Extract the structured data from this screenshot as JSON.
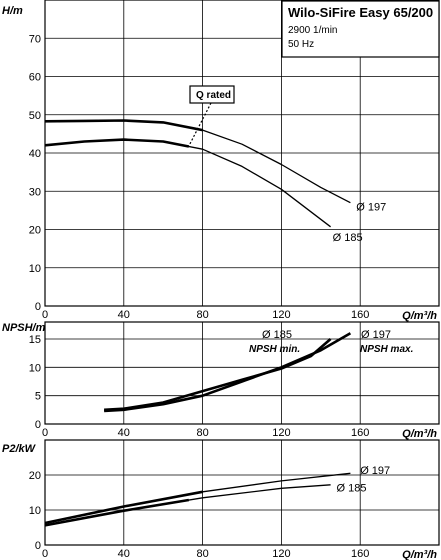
{
  "legend": {
    "title": "Wilo-SiFire Easy 65/200",
    "speed": "2900 1/min",
    "frequency": "50 Hz"
  },
  "chart_data": [
    {
      "type": "line",
      "id": "head",
      "ylabel": "H/m",
      "xlabel": "Q/m³/h",
      "xlim": [
        0,
        200
      ],
      "ylim": [
        0,
        80
      ],
      "xticks": [
        0,
        40,
        80,
        120,
        160
      ],
      "yticks": [
        0,
        10,
        20,
        30,
        40,
        50,
        60,
        70
      ],
      "grid": true,
      "series": [
        {
          "name": "Ø 197",
          "x": [
            0,
            20,
            40,
            60,
            80,
            100,
            120,
            140,
            155
          ],
          "y": [
            48.3,
            48.4,
            48.5,
            48.0,
            46.0,
            42.3,
            37.0,
            31.0,
            27.0
          ],
          "label_at": [
            158,
            26
          ]
        },
        {
          "name": "Ø 185",
          "x": [
            0,
            20,
            40,
            60,
            80,
            100,
            120,
            145
          ],
          "y": [
            42.0,
            43.0,
            43.5,
            43.0,
            41.0,
            36.5,
            30.5,
            20.7
          ],
          "label_at": [
            146,
            18
          ]
        }
      ],
      "annotations": [
        {
          "text": "Q rated",
          "q_values": [
            80,
            73
          ]
        }
      ]
    },
    {
      "type": "line",
      "id": "npsh",
      "ylabel": "NPSH/m",
      "xlabel": "Q/m³/h",
      "xlim": [
        0,
        200
      ],
      "ylim": [
        0,
        18
      ],
      "xticks": [
        0,
        40,
        80,
        120,
        160
      ],
      "yticks": [
        0,
        5,
        10,
        15
      ],
      "grid": true,
      "series": [
        {
          "name": "NPSH min.",
          "x": [
            30,
            40,
            60,
            80,
            100,
            120,
            135,
            145
          ],
          "y": [
            2.5,
            2.7,
            3.8,
            5.8,
            7.8,
            9.8,
            12.0,
            15.0
          ]
        },
        {
          "name": "NPSH max.",
          "x": [
            30,
            40,
            60,
            80,
            100,
            120,
            140,
            155
          ],
          "y": [
            2.3,
            2.5,
            3.5,
            5.0,
            7.5,
            10.0,
            13.0,
            16.0
          ]
        }
      ],
      "curve_labels": [
        {
          "diameter": "Ø 185",
          "npsh": "NPSH min."
        },
        {
          "diameter": "Ø 197",
          "npsh": "NPSH max."
        }
      ]
    },
    {
      "type": "line",
      "id": "power",
      "ylabel": "P2/kW",
      "xlabel": "Q/m³/h",
      "xlim": [
        0,
        200
      ],
      "ylim": [
        0,
        30
      ],
      "xticks": [
        0,
        40,
        80,
        120,
        160
      ],
      "yticks": [
        0,
        10,
        20
      ],
      "grid": true,
      "series": [
        {
          "name": "Ø 197",
          "x": [
            0,
            40,
            80,
            120,
            155
          ],
          "y": [
            6.3,
            11.0,
            15.2,
            18.3,
            20.5
          ],
          "label_at": [
            160,
            21.5
          ]
        },
        {
          "name": "Ø 185",
          "x": [
            0,
            40,
            80,
            120,
            145
          ],
          "y": [
            5.6,
            9.8,
            13.5,
            16.2,
            17.2
          ],
          "label_at": [
            148,
            16.5
          ]
        }
      ]
    }
  ]
}
